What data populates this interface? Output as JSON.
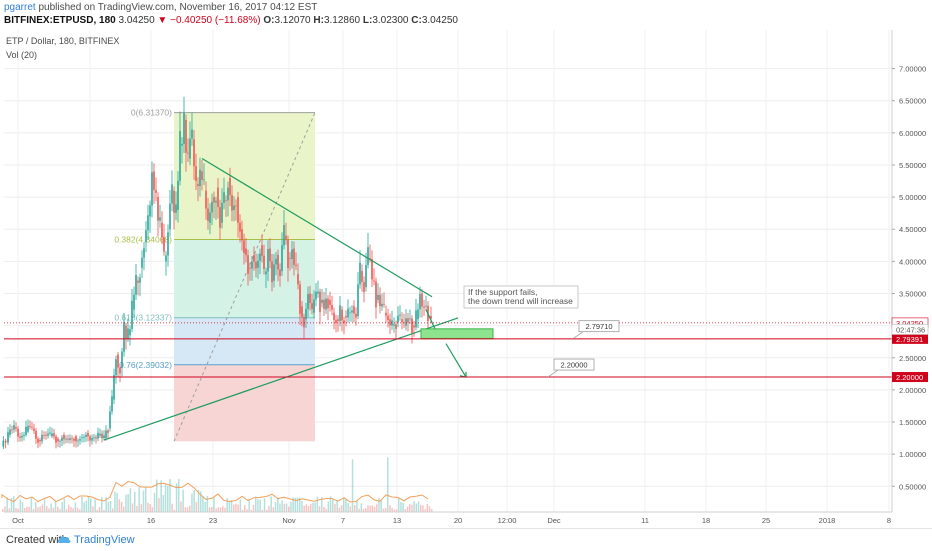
{
  "header": {
    "author": "pgarret",
    "published": " published on TradingView.com, November 16, 2017 04:12 EST",
    "symbol": "BITFINEX:ETPUSD, 180",
    "last": "3.04250",
    "change": "−0.40250 (−11.68%)",
    "o_label": "O:",
    "o": "3.12070",
    "h_label": "H:",
    "h": "3.12860",
    "l_label": "L:",
    "l": "3.02300",
    "c_label": "C:",
    "c": "3.04250"
  },
  "chart_data": {
    "type": "candlestick",
    "title": "ETP / Dollar, 180, BITFINEX",
    "indicator": "Vol (20)",
    "ylim": [
      0.1,
      7.6
    ],
    "y_ticks": [
      "0.50000",
      "1.00000",
      "1.50000",
      "2.00000",
      "2.50000",
      "3.00000",
      "3.50000",
      "4.00000",
      "4.50000",
      "5.00000",
      "5.50000",
      "6.00000",
      "6.50000",
      "7.00000"
    ],
    "y_tick_values": [
      0.5,
      1.0,
      1.5,
      2.0,
      2.5,
      3.0,
      3.5,
      4.0,
      4.5,
      5.0,
      5.5,
      6.0,
      6.5,
      7.0
    ],
    "x_ticks": [
      "Oct",
      "9",
      "16",
      "23",
      "Nov",
      "7",
      "13",
      "20",
      "12:00",
      "Dec",
      "11",
      "18",
      "25",
      "2018",
      "8"
    ],
    "price_path": [
      [
        1,
        1.12
      ],
      [
        8,
        1.3
      ],
      [
        14,
        1.42
      ],
      [
        20,
        1.26
      ],
      [
        26,
        1.35
      ],
      [
        32,
        1.4
      ],
      [
        38,
        1.22
      ],
      [
        44,
        1.3
      ],
      [
        50,
        1.28
      ],
      [
        56,
        1.24
      ],
      [
        62,
        1.3
      ],
      [
        68,
        1.22
      ],
      [
        74,
        1.28
      ],
      [
        80,
        1.25
      ],
      [
        86,
        1.33
      ],
      [
        92,
        1.26
      ],
      [
        98,
        1.29
      ],
      [
        104,
        1.25
      ],
      [
        108,
        1.4
      ],
      [
        112,
        1.85
      ],
      [
        116,
        2.55
      ],
      [
        120,
        2.35
      ],
      [
        124,
        3.0
      ],
      [
        128,
        2.85
      ],
      [
        132,
        3.25
      ],
      [
        136,
        3.7
      ],
      [
        140,
        3.9
      ],
      [
        144,
        4.3
      ],
      [
        148,
        4.7
      ],
      [
        152,
        5.4
      ],
      [
        156,
        5.0
      ],
      [
        160,
        4.6
      ],
      [
        164,
        4.0
      ],
      [
        168,
        4.5
      ],
      [
        172,
        5.1
      ],
      [
        176,
        4.8
      ],
      [
        180,
        5.8
      ],
      [
        184,
        6.2
      ],
      [
        188,
        5.6
      ],
      [
        192,
        5.9
      ],
      [
        196,
        5.2
      ],
      [
        200,
        5.4
      ],
      [
        204,
        5.1
      ],
      [
        208,
        4.6
      ],
      [
        212,
        5.0
      ],
      [
        216,
        5.15
      ],
      [
        220,
        4.6
      ],
      [
        224,
        4.95
      ],
      [
        228,
        5.3
      ],
      [
        232,
        4.8
      ],
      [
        236,
        5.0
      ],
      [
        240,
        4.5
      ],
      [
        244,
        4.2
      ],
      [
        248,
        3.9
      ],
      [
        252,
        4.1
      ],
      [
        256,
        3.9
      ],
      [
        260,
        4.25
      ],
      [
        264,
        3.8
      ],
      [
        268,
        4.2
      ],
      [
        272,
        3.7
      ],
      [
        276,
        4.1
      ],
      [
        280,
        3.85
      ],
      [
        284,
        4.4
      ],
      [
        288,
        4.05
      ],
      [
        292,
        4.2
      ],
      [
        296,
        3.8
      ],
      [
        300,
        3.3
      ],
      [
        304,
        3.1
      ],
      [
        308,
        3.5
      ],
      [
        312,
        3.2
      ],
      [
        316,
        3.5
      ],
      [
        320,
        3.35
      ],
      [
        324,
        3.25
      ],
      [
        328,
        3.4
      ],
      [
        332,
        3.2
      ],
      [
        336,
        3.1
      ],
      [
        340,
        3.25
      ],
      [
        344,
        3.15
      ],
      [
        348,
        3.2
      ],
      [
        352,
        3.3
      ],
      [
        356,
        3.15
      ],
      [
        360,
        3.85
      ],
      [
        364,
        3.6
      ],
      [
        368,
        4.05
      ],
      [
        372,
        3.7
      ],
      [
        376,
        3.4
      ],
      [
        380,
        3.3
      ],
      [
        384,
        3.2
      ],
      [
        388,
        3.1
      ],
      [
        392,
        3.0
      ],
      [
        396,
        3.05
      ],
      [
        400,
        3.1
      ],
      [
        404,
        3.0
      ],
      [
        408,
        3.1
      ],
      [
        412,
        3.0
      ],
      [
        416,
        3.1
      ],
      [
        420,
        3.5
      ],
      [
        424,
        3.3
      ],
      [
        428,
        3.15
      ],
      [
        431,
        3.04
      ]
    ],
    "fibonacci": [
      {
        "label": "0(6.31370)",
        "value": 6.3137
      },
      {
        "label": "0.382(4.34068)",
        "value": 4.34068
      },
      {
        "label": "0.618(3.12337)",
        "value": 3.12337
      },
      {
        "label": "0.76(2.39032)",
        "value": 2.39032
      }
    ],
    "horizontal_levels": [
      {
        "label": "2.79391",
        "value": 2.79391
      },
      {
        "label": "2.20000",
        "value": 2.2
      }
    ],
    "price_labels": [
      {
        "label": "3.04250",
        "value": 3.0425
      },
      {
        "label": "02:47:36",
        "value": 2.94
      }
    ],
    "callouts": [
      {
        "label": "2.79710",
        "value": 2.7971
      },
      {
        "label": "2.20000",
        "value": 2.2
      }
    ],
    "annotation": [
      "If the support fails,",
      "the down trend will increase"
    ],
    "colors": {
      "up": "#26a69a",
      "down": "#ef5350",
      "trend": "#1e9b5e",
      "level": "#d0021b",
      "accent": "#2f7fd6"
    }
  },
  "footer": {
    "created": "Created with",
    "brand": "TradingView"
  }
}
